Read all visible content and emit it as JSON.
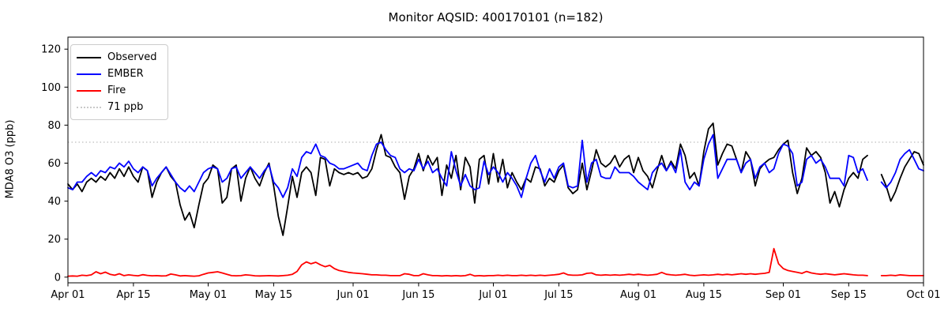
{
  "chart_data": {
    "type": "line",
    "title": "Monitor AQSID: 400170101 (n=182)",
    "ylabel": "MDA8 O3 (ppb)",
    "xlabel": "",
    "ylim": [
      -3,
      126.3
    ],
    "y_ticks": [
      0,
      20,
      40,
      60,
      80,
      100,
      120
    ],
    "x_ticks": [
      {
        "label": "Apr 01",
        "day": 0
      },
      {
        "label": "Apr 15",
        "day": 14
      },
      {
        "label": "May 01",
        "day": 30
      },
      {
        "label": "May 15",
        "day": 44
      },
      {
        "label": "Jun 01",
        "day": 61
      },
      {
        "label": "Jun 15",
        "day": 75
      },
      {
        "label": "Jul 01",
        "day": 91
      },
      {
        "label": "Jul 15",
        "day": 105
      },
      {
        "label": "Aug 01",
        "day": 122
      },
      {
        "label": "Aug 15",
        "day": 136
      },
      {
        "label": "Sep 01",
        "day": 153
      },
      {
        "label": "Sep 15",
        "day": 167
      },
      {
        "label": "Oct 01",
        "day": 183
      }
    ],
    "x_range_days": 183,
    "date_start": "Apr 01",
    "date_end": "Oct 01",
    "grid": false,
    "legend_position": "upper left",
    "reference_line": {
      "label": "71 ppb",
      "value": 71,
      "color": "#c9c9c9",
      "style": "dotted"
    },
    "legend": [
      {
        "label": "Observed",
        "color": "#000000",
        "style": "solid"
      },
      {
        "label": "EMBER",
        "color": "#0000ff",
        "style": "solid"
      },
      {
        "label": "Fire",
        "color": "#ff0000",
        "style": "solid"
      },
      {
        "label": "71 ppb",
        "color": "#c9c9c9",
        "style": "dotted"
      }
    ],
    "series": [
      {
        "name": "Observed",
        "color": "#000000",
        "values": [
          49,
          46,
          49,
          45,
          50,
          52,
          50,
          53,
          51,
          55,
          52,
          57,
          53,
          58,
          53,
          50,
          58,
          56,
          42,
          50,
          55,
          58,
          53,
          50,
          38,
          30,
          34,
          26,
          38,
          49,
          52,
          59,
          57,
          39,
          42,
          57,
          59,
          40,
          52,
          58,
          52,
          48,
          55,
          60,
          48,
          32,
          22,
          37,
          53,
          42,
          55,
          58,
          55,
          43,
          63,
          62,
          48,
          57,
          55,
          54,
          55,
          54,
          55,
          52,
          53,
          57,
          67,
          75,
          64,
          63,
          58,
          55,
          41,
          53,
          57,
          65,
          56,
          64,
          59,
          63,
          43,
          59,
          52,
          64,
          46,
          63,
          58,
          39,
          62,
          64,
          49,
          65,
          50,
          62,
          47,
          55,
          50,
          46,
          52,
          50,
          58,
          57,
          48,
          52,
          50,
          56,
          59,
          47,
          44,
          46,
          60,
          46,
          56,
          67,
          60,
          58,
          60,
          64,
          58,
          62,
          64,
          55,
          63,
          56,
          53,
          47,
          56,
          64,
          56,
          61,
          57,
          70,
          64,
          52,
          55,
          48,
          66,
          78,
          81,
          59,
          65,
          70,
          69,
          62,
          55,
          66,
          62,
          48,
          57,
          60,
          62,
          63,
          67,
          70,
          72,
          55,
          44,
          52,
          68,
          64,
          66,
          63,
          55,
          39,
          45,
          37,
          46,
          52,
          55,
          52,
          62,
          64,
          null,
          null,
          54,
          48,
          40,
          45,
          52,
          58,
          62,
          66,
          65,
          59
        ]
      },
      {
        "name": "EMBER",
        "color": "#0000ff",
        "values": [
          47,
          46,
          50,
          50,
          53,
          55,
          53,
          56,
          55,
          58,
          57,
          60,
          58,
          61,
          57,
          55,
          58,
          56,
          48,
          52,
          55,
          58,
          54,
          50,
          47,
          45,
          48,
          45,
          50,
          55,
          57,
          58,
          57,
          50,
          52,
          57,
          58,
          52,
          55,
          58,
          55,
          52,
          56,
          59,
          50,
          47,
          42,
          47,
          57,
          53,
          63,
          66,
          65,
          70,
          64,
          63,
          60,
          59,
          57,
          57,
          58,
          59,
          60,
          57,
          56,
          64,
          70,
          71,
          67,
          64,
          63,
          57,
          55,
          57,
          56,
          62,
          57,
          61,
          55,
          57,
          52,
          48,
          66,
          56,
          48,
          54,
          48,
          46,
          47,
          61,
          54,
          58,
          55,
          50,
          55,
          52,
          48,
          42,
          52,
          60,
          64,
          56,
          50,
          57,
          52,
          58,
          60,
          48,
          47,
          48,
          72,
          50,
          60,
          62,
          53,
          52,
          52,
          58,
          55,
          55,
          55,
          53,
          50,
          48,
          46,
          55,
          58,
          60,
          56,
          60,
          55,
          67,
          50,
          46,
          50,
          48,
          62,
          70,
          75,
          52,
          57,
          62,
          62,
          62,
          55,
          60,
          62,
          52,
          58,
          60,
          55,
          57,
          65,
          70,
          69,
          65,
          48,
          50,
          62,
          64,
          60,
          62,
          58,
          52,
          52,
          52,
          48,
          64,
          63,
          55,
          57,
          51,
          null,
          null,
          50,
          47,
          50,
          55,
          62,
          65,
          67,
          62,
          57,
          56
        ]
      },
      {
        "name": "Fire",
        "color": "#ff0000",
        "values": [
          0.5,
          0.6,
          0.5,
          1.0,
          0.8,
          1.2,
          2.8,
          1.8,
          2.6,
          1.5,
          1.0,
          1.8,
          0.8,
          1.2,
          0.9,
          0.7,
          1.3,
          0.9,
          0.7,
          0.8,
          0.6,
          0.7,
          1.6,
          1.2,
          0.6,
          0.8,
          0.6,
          0.5,
          0.7,
          1.5,
          2.2,
          2.5,
          2.8,
          2.2,
          1.5,
          0.8,
          0.7,
          0.8,
          1.2,
          1.0,
          0.7,
          0.6,
          0.7,
          0.8,
          0.7,
          0.6,
          0.8,
          1.0,
          1.5,
          3.0,
          6.5,
          8.0,
          7.0,
          7.8,
          6.5,
          5.5,
          6.2,
          4.5,
          3.5,
          3.0,
          2.5,
          2.2,
          2.0,
          1.8,
          1.5,
          1.2,
          1.2,
          1.0,
          1.0,
          0.8,
          0.8,
          0.8,
          1.8,
          1.5,
          0.8,
          0.8,
          1.8,
          1.2,
          0.8,
          0.8,
          0.6,
          0.8,
          0.6,
          0.8,
          0.6,
          0.8,
          1.5,
          0.6,
          0.8,
          0.6,
          0.8,
          0.8,
          1.0,
          0.8,
          1.0,
          0.8,
          0.8,
          1.0,
          0.8,
          1.0,
          0.8,
          1.0,
          0.8,
          1.0,
          1.2,
          1.5,
          2.2,
          1.2,
          1.0,
          1.0,
          1.2,
          2.0,
          2.2,
          1.2,
          1.0,
          1.2,
          1.0,
          1.2,
          1.0,
          1.2,
          1.5,
          1.2,
          1.5,
          1.2,
          1.0,
          1.2,
          1.5,
          2.5,
          1.5,
          1.2,
          1.0,
          1.2,
          1.5,
          1.0,
          0.8,
          1.0,
          1.2,
          1.0,
          1.2,
          1.5,
          1.2,
          1.5,
          1.2,
          1.5,
          1.8,
          1.5,
          1.8,
          1.5,
          1.8,
          2.0,
          2.5,
          15.0,
          7.0,
          4.5,
          3.5,
          3.0,
          2.5,
          2.0,
          3.0,
          2.2,
          1.8,
          1.5,
          1.8,
          1.5,
          1.2,
          1.5,
          1.8,
          1.5,
          1.2,
          1.0,
          1.0,
          0.8,
          null,
          null,
          0.8,
          0.8,
          1.0,
          0.8,
          1.2,
          1.0,
          0.8,
          0.8,
          0.8,
          0.8
        ]
      }
    ]
  }
}
